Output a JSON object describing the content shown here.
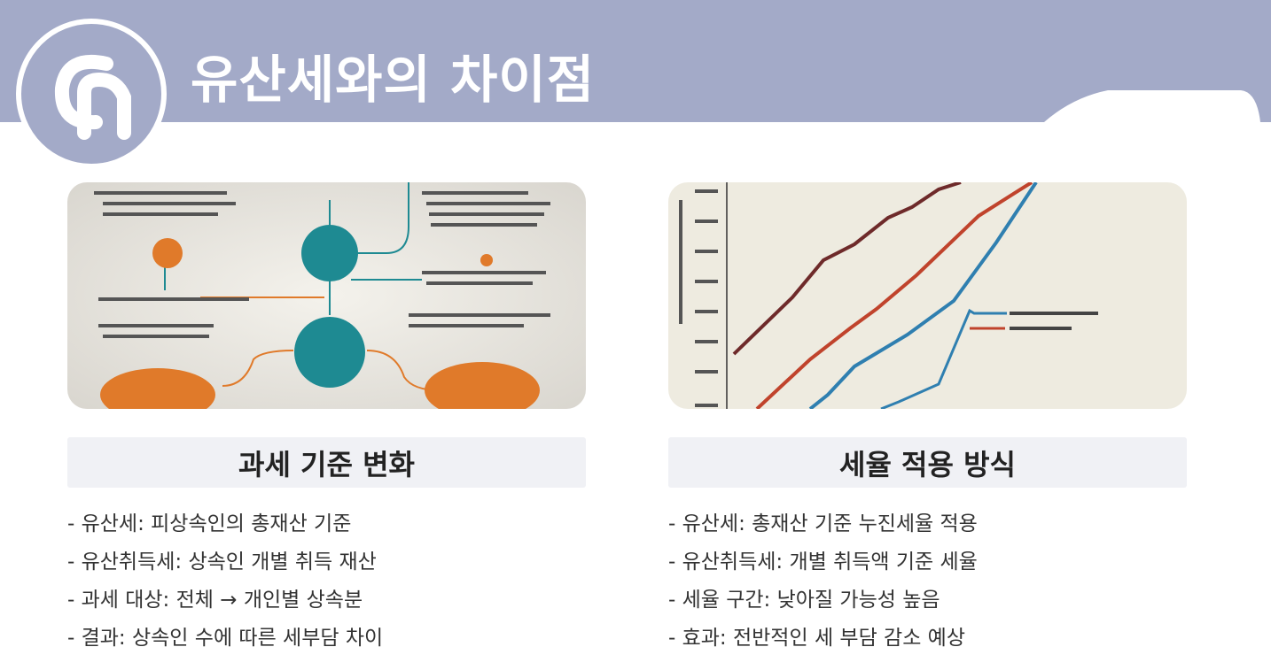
{
  "header": {
    "title": "유산세와의 차이점"
  },
  "columns": [
    {
      "heading": "과세 기준 변화",
      "items": [
        "- 유산세: 피상속인의 총재산 기준",
        "- 유산취득세: 상속인 개별 취득 재산",
        "- 과세 대상: 전체 → 개인별 상속분",
        "- 결과: 상속인 수에 따른 세부담 차이"
      ]
    },
    {
      "heading": "세율 적용 방식",
      "items": [
        "- 유산세: 총재산 기준 누진세율 적용",
        "- 유산취득세: 개별 취득액 기준 세율",
        "- 세율 구간: 낮아질 가능성 높음",
        "- 효과: 전반적인 세 부담 감소 예상"
      ]
    }
  ]
}
